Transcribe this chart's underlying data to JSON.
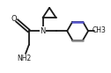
{
  "bg_color": "#ffffff",
  "bond_color": "#1a1a1a",
  "aromatic_top_color": "#5555cc",
  "aromatic_bot_color": "#888888",
  "line_width": 1.3,
  "figsize": [
    1.26,
    0.83
  ],
  "dpi": 100,
  "xlim": [
    0,
    10
  ],
  "ylim": [
    0,
    6.6
  ],
  "O_label": "O",
  "N_label": "N",
  "NH2_label": "NH2",
  "CH3_label": "CH3",
  "label_fontsize": 6.0
}
